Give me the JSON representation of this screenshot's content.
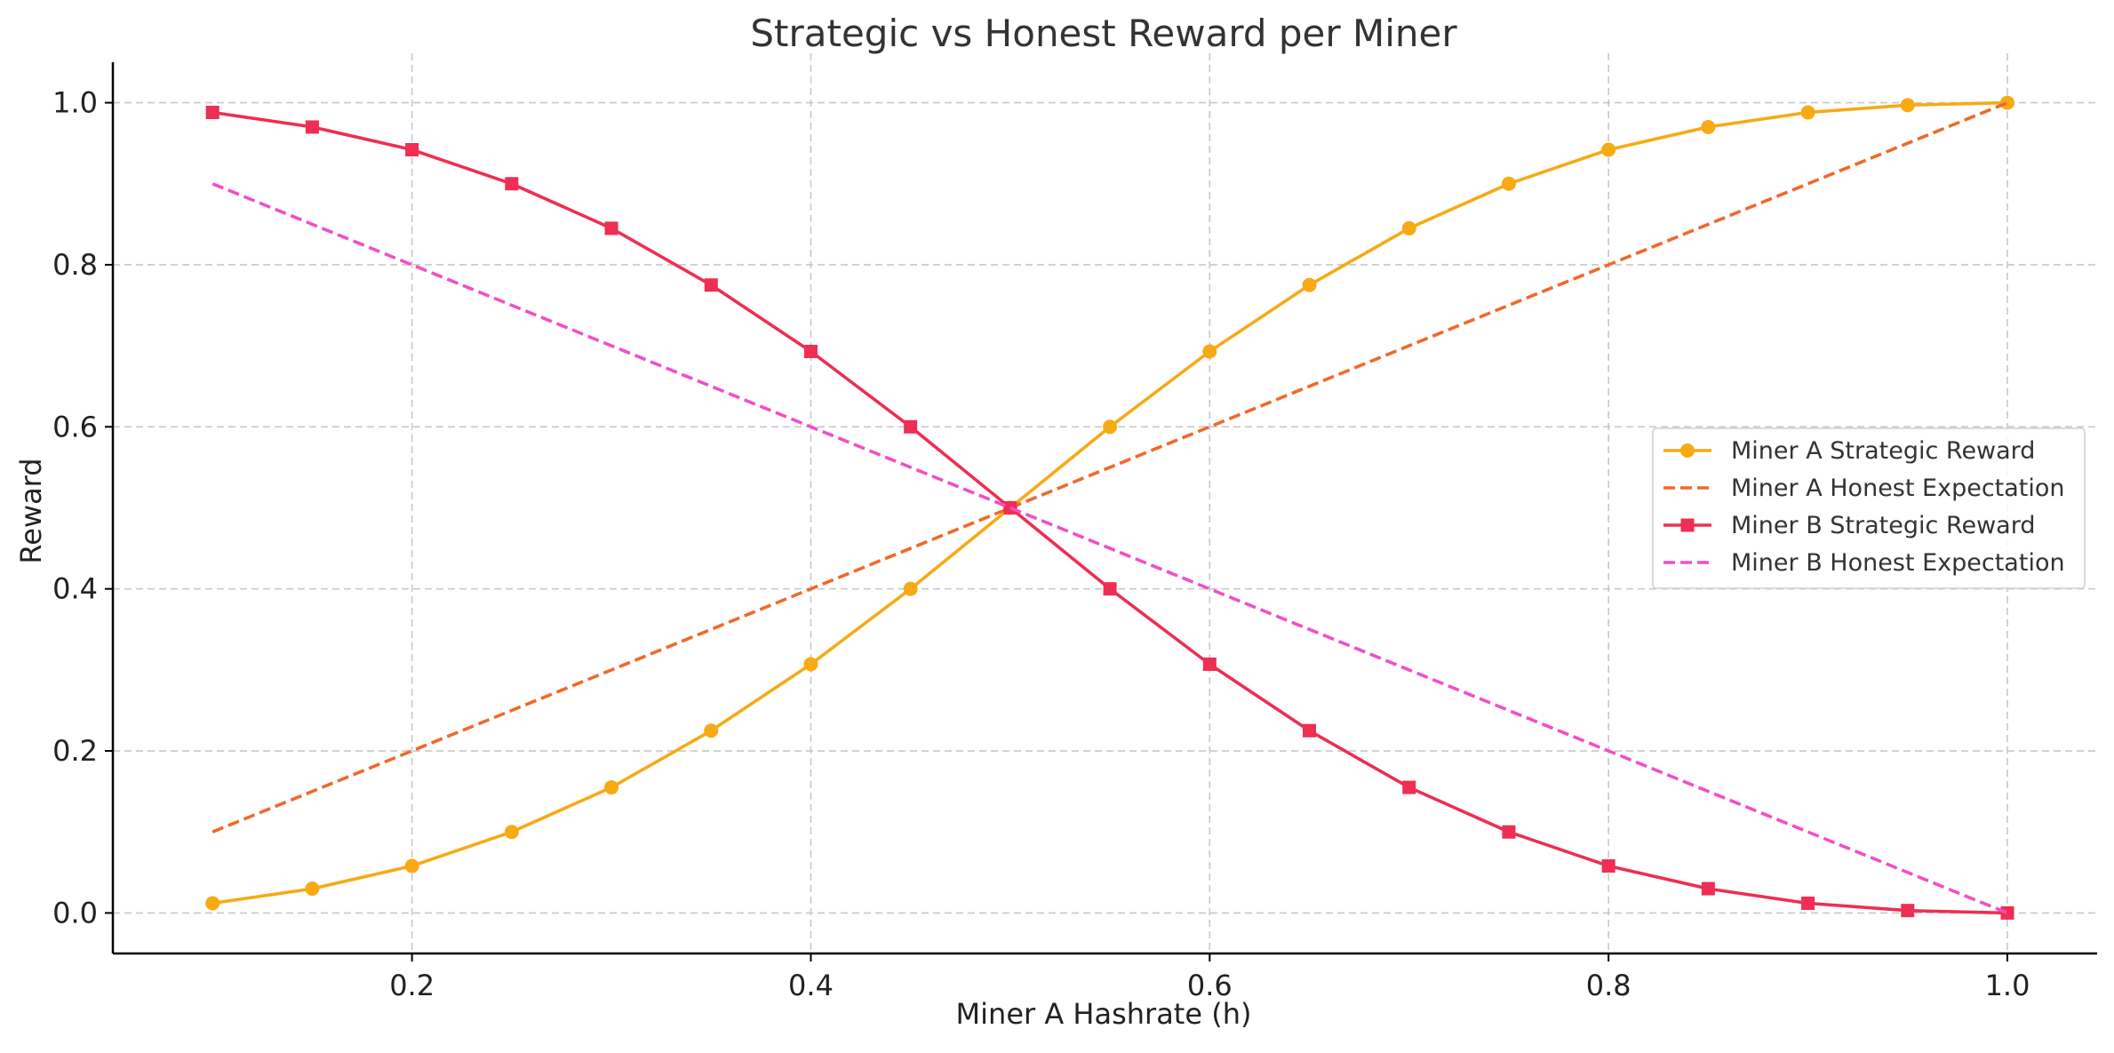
{
  "chart_data": {
    "type": "line",
    "title": "Strategic vs Honest Reward per Miner",
    "xlabel": "Miner A Hashrate (h)",
    "ylabel": "Reward",
    "xlim": [
      0.05,
      1.045
    ],
    "ylim": [
      -0.05,
      1.05
    ],
    "xticks": [
      "0.2",
      "0.4",
      "0.6",
      "0.8",
      "1.0"
    ],
    "yticks": [
      "0.0",
      "0.2",
      "0.4",
      "0.6",
      "0.8",
      "1.0"
    ],
    "grid": true,
    "legend_position": "center-right",
    "x": [
      0.1,
      0.15,
      0.2,
      0.25,
      0.3,
      0.35,
      0.4,
      0.45,
      0.5,
      0.55,
      0.6,
      0.65,
      0.7,
      0.75,
      0.8,
      0.85,
      0.9,
      0.95,
      1.0
    ],
    "series": [
      {
        "name": "Miner A Strategic Reward",
        "color": "#F7AA14",
        "style": "solid",
        "marker": "circle",
        "values": [
          0.012,
          0.03,
          0.058,
          0.1,
          0.155,
          0.225,
          0.307,
          0.4,
          0.5,
          0.6,
          0.693,
          0.775,
          0.845,
          0.9,
          0.942,
          0.97,
          0.988,
          0.997,
          1.0
        ]
      },
      {
        "name": "Miner A Honest Expectation",
        "color": "#F0692A",
        "style": "dashed",
        "marker": "none",
        "values": [
          0.1,
          0.15,
          0.2,
          0.25,
          0.3,
          0.35,
          0.4,
          0.45,
          0.5,
          0.55,
          0.6,
          0.65,
          0.7,
          0.75,
          0.8,
          0.85,
          0.9,
          0.95,
          1.0
        ]
      },
      {
        "name": "Miner B Strategic Reward",
        "color": "#EE2E52",
        "style": "solid",
        "marker": "square",
        "values": [
          0.988,
          0.97,
          0.942,
          0.9,
          0.845,
          0.775,
          0.693,
          0.6,
          0.5,
          0.4,
          0.307,
          0.225,
          0.155,
          0.1,
          0.058,
          0.03,
          0.012,
          0.003,
          0.0
        ]
      },
      {
        "name": "Miner B Honest Expectation",
        "color": "#F24FC4",
        "style": "dashed",
        "marker": "none",
        "values": [
          0.9,
          0.85,
          0.8,
          0.75,
          0.7,
          0.65,
          0.6,
          0.55,
          0.5,
          0.45,
          0.4,
          0.35,
          0.3,
          0.25,
          0.2,
          0.15,
          0.1,
          0.05,
          0.0
        ]
      }
    ]
  }
}
